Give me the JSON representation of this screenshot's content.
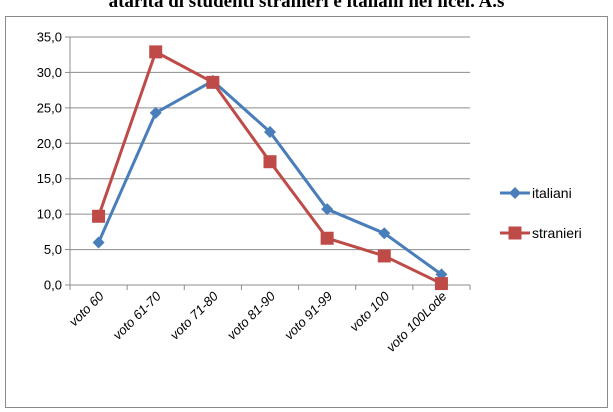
{
  "caption": "atarità di studenti stranieri e italiani nei licei. A.s",
  "chart_data": {
    "type": "line",
    "categories": [
      "voto 60",
      "voto 61-70",
      "voto 71-80",
      "voto 81-90",
      "voto 91-99",
      "voto 100",
      "voto 100Lode"
    ],
    "series": [
      {
        "name": "italiani",
        "color": "#4a7ebb",
        "marker": "diamond",
        "values": [
          6.0,
          24.3,
          28.8,
          21.6,
          10.7,
          7.3,
          1.5
        ]
      },
      {
        "name": "stranieri",
        "color": "#be4b48",
        "marker": "square",
        "values": [
          9.7,
          32.9,
          28.6,
          17.4,
          6.6,
          4.1,
          0.2
        ]
      }
    ],
    "yticks": [
      "0,0",
      "5,0",
      "10,0",
      "15,0",
      "20,0",
      "25,0",
      "30,0",
      "35,0"
    ],
    "ylim": [
      0,
      35
    ],
    "grid": true,
    "legend_position": "right"
  }
}
